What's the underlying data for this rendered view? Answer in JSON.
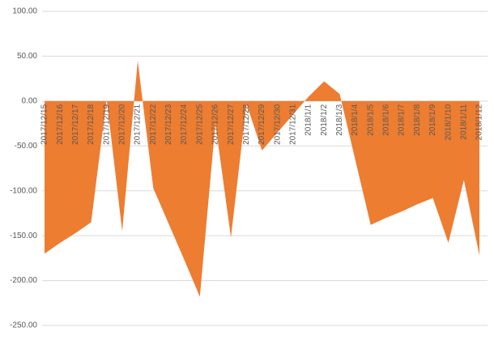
{
  "chart_data": {
    "type": "area",
    "categories": [
      "2017/12/15",
      "2017/12/16",
      "2017/12/17",
      "2017/12/18",
      "2017/12/19",
      "2017/12/20",
      "2017/12/21",
      "2017/12/22",
      "2017/12/23",
      "2017/12/24",
      "2017/12/25",
      "2017/12/26",
      "2017/12/27",
      "2017/12/28",
      "2017/12/29",
      "2017/12/30",
      "2017/12/31",
      "2018/1/1",
      "2018/1/2",
      "2018/1/3",
      "2018/1/4",
      "2018/1/5",
      "2018/1/6",
      "2018/1/7",
      "2018/1/8",
      "2018/1/9",
      "2018/1/10",
      "2018/1/11",
      "2018/1/12"
    ],
    "values": [
      -170,
      -158,
      -147,
      -135,
      2,
      -145,
      45,
      -97,
      -137,
      -177,
      -218,
      -25,
      -152,
      -3,
      -55,
      -35,
      -15,
      5,
      22,
      8,
      -65,
      -138,
      -130,
      -123,
      -115,
      -108,
      -158,
      -88,
      -172
    ],
    "color": "#ed7d31",
    "ylim": [
      -250,
      100
    ],
    "yticks": [
      {
        "value": -250,
        "label": "-250.00"
      },
      {
        "value": -200,
        "label": "-200.00"
      },
      {
        "value": -150,
        "label": "-150.00"
      },
      {
        "value": -100,
        "label": "-100.00"
      },
      {
        "value": -50,
        "label": "-50.00"
      },
      {
        "value": 0,
        "label": "0.00"
      },
      {
        "value": 50,
        "label": "50.00"
      },
      {
        "value": 100,
        "label": "100.00"
      }
    ],
    "grid": true
  }
}
